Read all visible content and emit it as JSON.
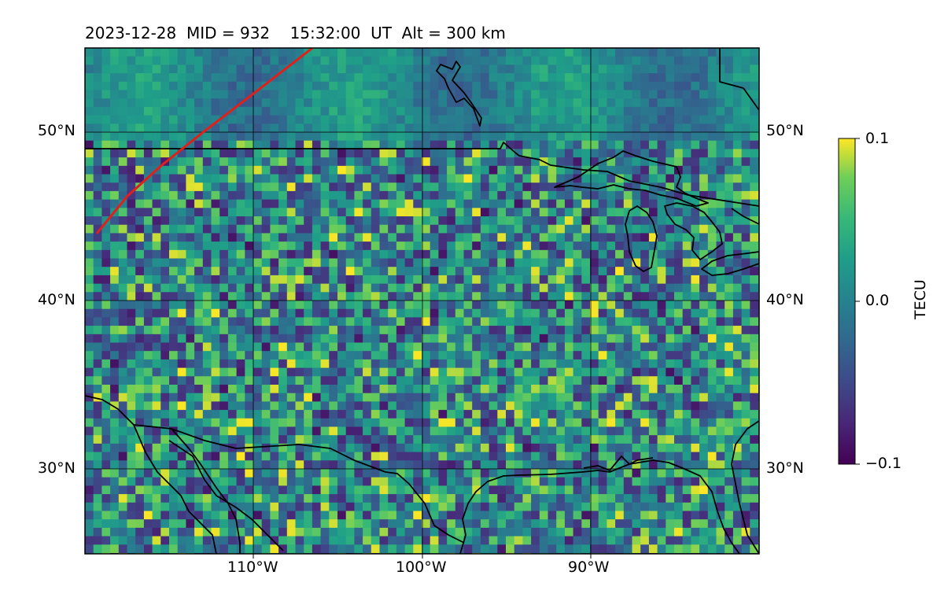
{
  "title": "2023-12-28  MID = 932    15:32:00  UT  Alt = 300 km",
  "chart_data": {
    "type": "heatmap",
    "title": "2023-12-28  MID = 932    15:32:00  UT  Alt = 300 km",
    "projection": "map",
    "lon_range": [
      -120,
      -80
    ],
    "lat_range": [
      25,
      55
    ],
    "grid": true,
    "lon_ticks": [
      -110,
      -100,
      -90
    ],
    "lat_ticks": [
      30,
      40,
      50
    ],
    "x_tick_labels": [
      "110°W",
      "100°W",
      "90°W"
    ],
    "y_tick_labels": [
      "30°N",
      "40°N",
      "50°N"
    ],
    "colorbar": {
      "label": "TECU",
      "min": -0.1,
      "max": 0.1,
      "ticks": [
        0.1,
        0.0,
        -0.1
      ],
      "tick_labels": [
        "0.1",
        "0.0",
        "−0.1"
      ],
      "colormap": "viridis"
    },
    "red_track": {
      "color": "#e0201a",
      "points": [
        [
          -119.3,
          44.0
        ],
        [
          -117.5,
          46.2
        ],
        [
          -115.5,
          48.0
        ],
        [
          -113.0,
          50.0
        ],
        [
          -110.0,
          52.3
        ],
        [
          -106.5,
          55.0
        ]
      ]
    }
  }
}
